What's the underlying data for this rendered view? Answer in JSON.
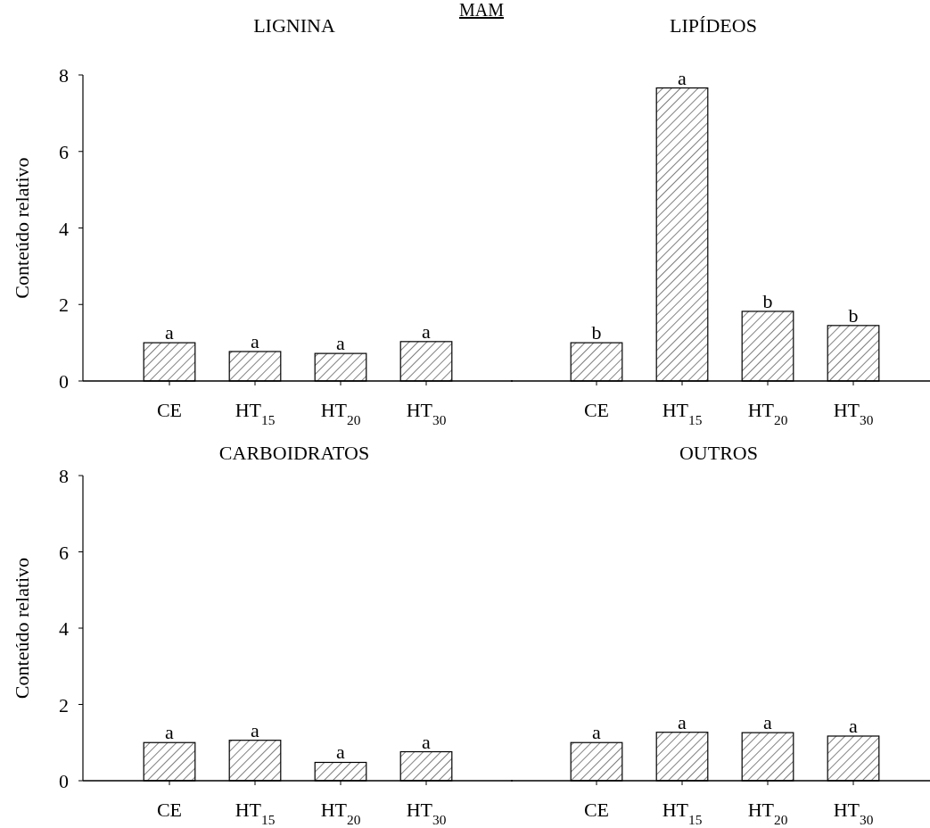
{
  "chart_data": [
    {
      "type": "bar",
      "title": "LIGNINA",
      "ylabel": "Conteúdo relativo",
      "annotations": [
        "MAM"
      ],
      "categories": [
        "CE",
        "HT$_{15}$",
        "HT$_{20}$",
        "HT$_{30}$"
      ],
      "values": [
        1.0,
        0.77,
        0.72,
        1.03
      ],
      "value_labels": [
        "a",
        "a",
        "a",
        "a"
      ],
      "color": "#000000",
      "ylim": [
        0,
        8
      ],
      "yticks": [
        0,
        2,
        4,
        6,
        8
      ]
    },
    {
      "type": "bar",
      "title": "LIPÍDEOS",
      "categories": [
        "CE",
        "HT$_{15}$",
        "HT$_{20}$",
        "HT$_{30}$"
      ],
      "values": [
        1.0,
        7.66,
        1.82,
        1.45
      ],
      "value_labels": [
        "b",
        "a",
        "b",
        "b"
      ],
      "color": "#000000",
      "ylim": [
        0,
        8
      ],
      "yticks": [
        0,
        2,
        4,
        6,
        8
      ],
      "tick_labels": "x"
    },
    {
      "type": "bar",
      "title": "CARBOIDRATOS",
      "ylabel": "Conteúdo relativo",
      "categories": [
        "CE",
        "HT$_{15}$",
        "HT$_{20}$",
        "HT$_{30}$"
      ],
      "values": [
        1.0,
        1.06,
        0.48,
        0.76
      ],
      "value_labels": [
        "a",
        "a",
        "a",
        "a"
      ],
      "color": "#000000",
      "ylim": [
        0,
        8
      ],
      "yticks": [
        0,
        2,
        4,
        6,
        8
      ]
    },
    {
      "type": "bar",
      "title": "OUTROS",
      "categories": [
        "CE",
        "HT$_{15}$",
        "HT$_{20}$",
        "HT$_{30}$"
      ],
      "values": [
        1.0,
        1.27,
        1.26,
        1.17
      ],
      "value_labels": [
        "a",
        "a",
        "a",
        "a"
      ],
      "color": "#000000",
      "ylim": [
        0,
        8
      ],
      "yticks": [
        0,
        2,
        4,
        6,
        8
      ],
      "tick_labels": "x"
    }
  ]
}
